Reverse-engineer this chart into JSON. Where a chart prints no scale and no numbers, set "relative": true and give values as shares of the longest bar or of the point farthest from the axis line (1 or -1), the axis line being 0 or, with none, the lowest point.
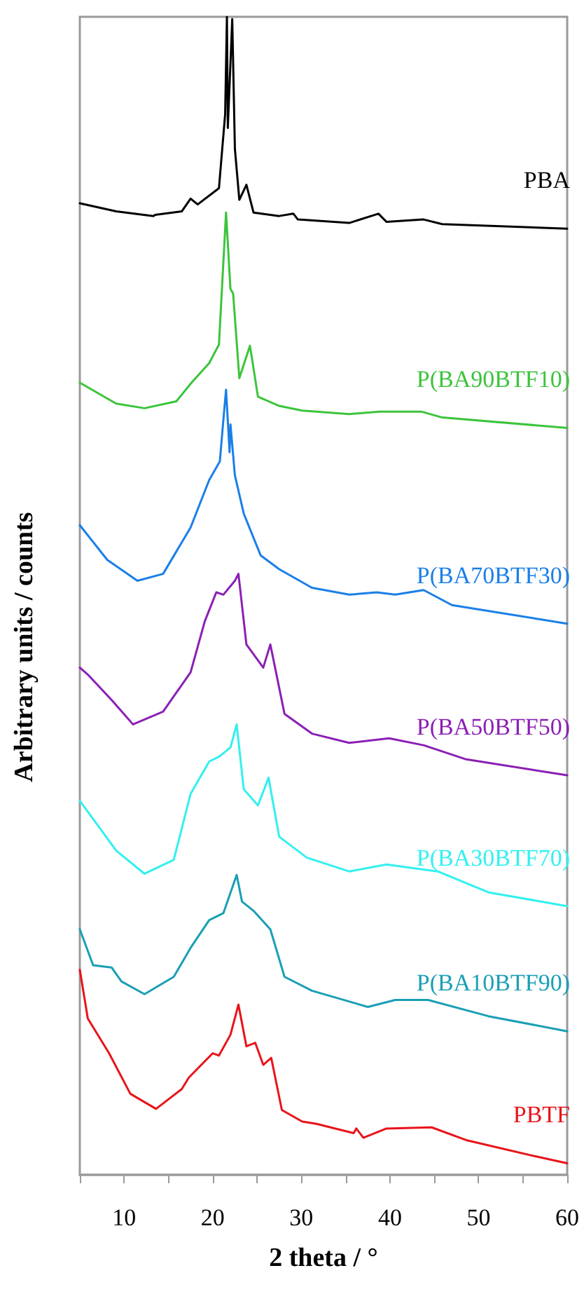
{
  "chart_data": {
    "type": "line",
    "relative": true,
    "xlabel": "2 theta / °",
    "ylabel": "Arbitrary units / counts",
    "xlim": [
      5,
      60
    ],
    "xticks": [
      {
        "value": 5,
        "label": null
      },
      10,
      {
        "value": 15,
        "label": null
      },
      20,
      {
        "value": 25,
        "label": null
      },
      30,
      {
        "value": 35,
        "label": null
      },
      40,
      {
        "value": 45,
        "label": null
      },
      50,
      {
        "value": 55,
        "label": null
      },
      60
    ],
    "grid": false,
    "legend": false,
    "marker": "none",
    "line_style": "solid",
    "series": [
      {
        "name": "PBA",
        "color": "#000000",
        "x": [
          5,
          9.1,
          13.3,
          13.5,
          16.5,
          17.5,
          18.3,
          20.7,
          21.4,
          21.6,
          21.7,
          22.2,
          22.5,
          23.0,
          23.8,
          24.6,
          27.5,
          29.1,
          29.6,
          35.4,
          38.7,
          39.6,
          43.8,
          45.9,
          60
        ],
        "values": [
          0.839,
          0.832,
          0.828,
          0.829,
          0.832,
          0.843,
          0.838,
          0.852,
          0.916,
          1.0,
          0.904,
          0.998,
          0.886,
          0.842,
          0.855,
          0.831,
          0.828,
          0.83,
          0.825,
          0.822,
          0.83,
          0.823,
          0.825,
          0.821,
          0.817
        ]
      },
      {
        "name": "P(BA90BTF10)",
        "color": "#3cc43c",
        "x": [
          5,
          9.1,
          12.3,
          15.9,
          17.6,
          19.6,
          20.7,
          21.5,
          22.0,
          22.3,
          23.0,
          24.2,
          25.1,
          27.5,
          30.1,
          35.4,
          38.8,
          41.2,
          43.6,
          45.9,
          60
        ],
        "values": [
          0.684,
          0.666,
          0.662,
          0.668,
          0.684,
          0.701,
          0.717,
          0.831,
          0.765,
          0.761,
          0.688,
          0.716,
          0.672,
          0.664,
          0.66,
          0.657,
          0.659,
          0.659,
          0.659,
          0.654,
          0.645
        ]
      },
      {
        "name": "P(BA70BTF30)",
        "color": "#1a7fe8",
        "x": [
          5,
          8.1,
          11.5,
          14.4,
          17.5,
          19.6,
          20.8,
          21.2,
          21.5,
          21.9,
          22.0,
          22.5,
          23.5,
          25.4,
          27.5,
          31.2,
          35.4,
          38.5,
          40.6,
          43.8,
          47.0,
          60
        ],
        "values": [
          0.561,
          0.531,
          0.513,
          0.519,
          0.559,
          0.6,
          0.616,
          0.652,
          0.678,
          0.624,
          0.648,
          0.604,
          0.571,
          0.535,
          0.523,
          0.507,
          0.501,
          0.503,
          0.501,
          0.505,
          0.492,
          0.476
        ]
      },
      {
        "name": "P(BA50BTF50)",
        "color": "#8b1fb5",
        "x": [
          5,
          5.9,
          8.6,
          11.0,
          14.4,
          17.5,
          19.1,
          20.4,
          21.2,
          22.5,
          22.9,
          23.8,
          25.7,
          26.5,
          28.1,
          31.2,
          35.4,
          39.9,
          43.8,
          48.5,
          60
        ],
        "values": [
          0.438,
          0.432,
          0.41,
          0.389,
          0.4,
          0.434,
          0.478,
          0.503,
          0.501,
          0.513,
          0.519,
          0.458,
          0.438,
          0.458,
          0.398,
          0.381,
          0.373,
          0.377,
          0.371,
          0.359,
          0.345
        ]
      },
      {
        "name": "P(BA30BTF70)",
        "color": "#33f0f0",
        "x": [
          5,
          9.1,
          12.3,
          15.6,
          17.5,
          19.6,
          20.7,
          22.0,
          22.7,
          23.5,
          25.1,
          26.3,
          27.5,
          30.6,
          35.4,
          39.6,
          45.4,
          51.1,
          60
        ],
        "values": [
          0.323,
          0.28,
          0.26,
          0.272,
          0.329,
          0.357,
          0.361,
          0.369,
          0.389,
          0.333,
          0.319,
          0.343,
          0.292,
          0.274,
          0.262,
          0.268,
          0.262,
          0.244,
          0.232
        ]
      },
      {
        "name": "P(BA10BTF90)",
        "color": "#1a9fb5",
        "x": [
          5,
          6.5,
          8.6,
          9.7,
          12.3,
          15.6,
          17.5,
          19.6,
          21.2,
          22.7,
          23.3,
          24.6,
          26.5,
          28.1,
          31.2,
          37.5,
          40.6,
          44.3,
          51.1,
          60
        ],
        "values": [
          0.212,
          0.181,
          0.179,
          0.167,
          0.156,
          0.171,
          0.196,
          0.22,
          0.226,
          0.259,
          0.236,
          0.228,
          0.212,
          0.171,
          0.159,
          0.145,
          0.151,
          0.151,
          0.137,
          0.124
        ]
      },
      {
        "name": "PBTF",
        "color": "#e8141a",
        "x": [
          5,
          5.9,
          8.3,
          10.7,
          13.6,
          16.5,
          17.3,
          20.0,
          20.7,
          22.0,
          22.9,
          23.8,
          24.8,
          25.7,
          26.6,
          27.8,
          30.1,
          31.7,
          35.9,
          36.2,
          37.0,
          39.6,
          44.7,
          48.6,
          56.4,
          60
        ],
        "values": [
          0.177,
          0.135,
          0.105,
          0.07,
          0.057,
          0.074,
          0.084,
          0.105,
          0.103,
          0.121,
          0.147,
          0.111,
          0.114,
          0.095,
          0.101,
          0.056,
          0.046,
          0.044,
          0.036,
          0.04,
          0.032,
          0.04,
          0.041,
          0.03,
          0.016,
          0.01
        ]
      }
    ]
  }
}
